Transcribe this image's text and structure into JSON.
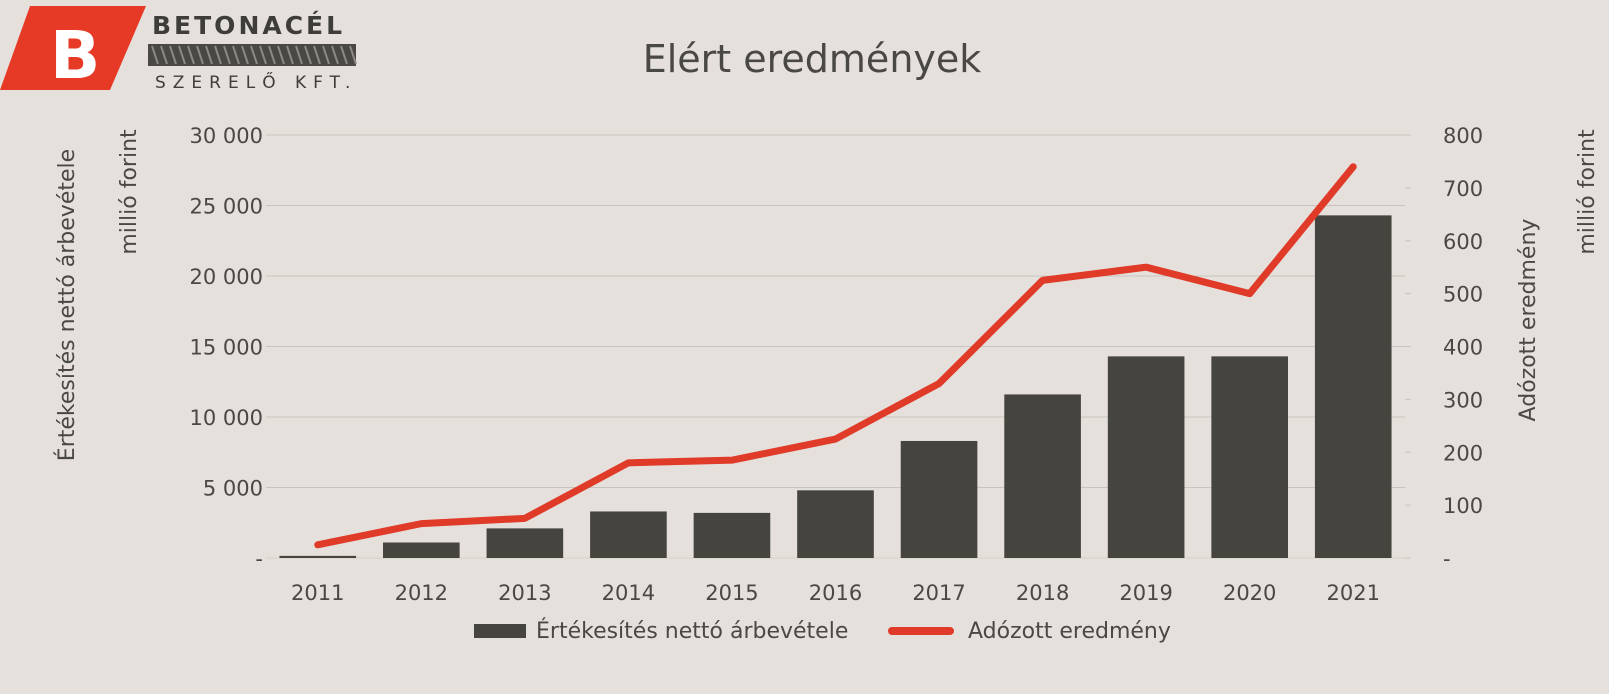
{
  "logo": {
    "letter": "B",
    "brand": "BETONACÉL",
    "subtitle": "SZERELŐ KFT.",
    "brand_color": "#e63a27"
  },
  "colors": {
    "background": "#e5e0db",
    "bar": "#46443f",
    "line": "#e03a28",
    "grid": "#c8c3be",
    "text": "#4a4845"
  },
  "chart_data": {
    "type": "bar",
    "title": "Elért eredmények",
    "categories": [
      "2011",
      "2012",
      "2013",
      "2014",
      "2015",
      "2016",
      "2017",
      "2018",
      "2019",
      "2020",
      "2021"
    ],
    "series": [
      {
        "name": "Értékesítés nettó árbevétele",
        "type": "bar",
        "axis": "left",
        "values": [
          150,
          1100,
          2100,
          3300,
          3200,
          4800,
          8300,
          11600,
          14300,
          14300,
          24300
        ]
      },
      {
        "name": "Adózott eredmény",
        "type": "line",
        "axis": "right",
        "values": [
          25,
          65,
          75,
          180,
          185,
          225,
          330,
          525,
          550,
          500,
          740
        ]
      }
    ],
    "y_left": {
      "label": "Értékesítés nettó árbevétele",
      "unit": "millió forint",
      "ylim": [
        0,
        30000
      ],
      "ticks": [
        0,
        5000,
        10000,
        15000,
        20000,
        25000,
        30000
      ],
      "tick_labels": [
        "-",
        "5 000",
        "10 000",
        "15 000",
        "20 000",
        "25 000",
        "30 000"
      ]
    },
    "y_right": {
      "label": "Adózott eredmény",
      "unit": "millió forint",
      "ylim": [
        0,
        800
      ],
      "ticks": [
        0,
        100,
        200,
        300,
        400,
        500,
        600,
        700,
        800
      ],
      "tick_labels": [
        "-",
        "100",
        "200",
        "300",
        "400",
        "500",
        "600",
        "700",
        "800"
      ]
    },
    "grid": true,
    "legend_position": "bottom"
  }
}
